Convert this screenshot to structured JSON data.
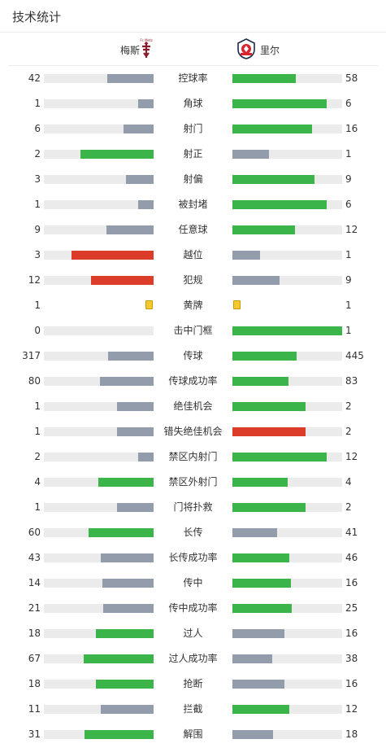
{
  "header": {
    "title": "技术统计"
  },
  "teams": {
    "home": {
      "name": "梅斯",
      "logo_text": "Fc Metz",
      "logo": "metz-crest-icon"
    },
    "away": {
      "name": "里尔",
      "logo": "lille-crest-icon"
    }
  },
  "colors": {
    "green": "#3bb54a",
    "gray": "#939cab",
    "red": "#dc3d2a",
    "track": "#ebebeb",
    "yellow_card": "#f4c92c"
  },
  "stats": [
    {
      "label": "控球率",
      "home": "42",
      "away": "58",
      "home_fill": 0.42,
      "away_fill": 0.58,
      "home_color": "gray",
      "away_color": "green"
    },
    {
      "label": "角球",
      "home": "1",
      "away": "6",
      "home_fill": 0.143,
      "away_fill": 0.857,
      "home_color": "gray",
      "away_color": "green"
    },
    {
      "label": "射门",
      "home": "6",
      "away": "16",
      "home_fill": 0.273,
      "away_fill": 0.727,
      "home_color": "gray",
      "away_color": "green"
    },
    {
      "label": "射正",
      "home": "2",
      "away": "1",
      "home_fill": 0.667,
      "away_fill": 0.333,
      "home_color": "green",
      "away_color": "gray"
    },
    {
      "label": "射偏",
      "home": "3",
      "away": "9",
      "home_fill": 0.25,
      "away_fill": 0.75,
      "home_color": "gray",
      "away_color": "green"
    },
    {
      "label": "被封堵",
      "home": "1",
      "away": "6",
      "home_fill": 0.143,
      "away_fill": 0.857,
      "home_color": "gray",
      "away_color": "green"
    },
    {
      "label": "任意球",
      "home": "9",
      "away": "12",
      "home_fill": 0.429,
      "away_fill": 0.571,
      "home_color": "gray",
      "away_color": "green"
    },
    {
      "label": "越位",
      "home": "3",
      "away": "1",
      "home_fill": 0.75,
      "away_fill": 0.25,
      "home_color": "red",
      "away_color": "gray"
    },
    {
      "label": "犯规",
      "home": "12",
      "away": "9",
      "home_fill": 0.571,
      "away_fill": 0.429,
      "home_color": "red",
      "away_color": "gray"
    },
    {
      "label": "黄牌",
      "home": "1",
      "away": "1",
      "type": "card"
    },
    {
      "label": "击中门框",
      "home": "0",
      "away": "1",
      "home_fill": 0,
      "away_fill": 1,
      "home_color": "gray",
      "away_color": "green"
    },
    {
      "label": "传球",
      "home": "317",
      "away": "445",
      "home_fill": 0.416,
      "away_fill": 0.584,
      "home_color": "gray",
      "away_color": "green"
    },
    {
      "label": "传球成功率",
      "home": "80",
      "away": "83",
      "home_fill": 0.491,
      "away_fill": 0.509,
      "home_color": "gray",
      "away_color": "green"
    },
    {
      "label": "绝佳机会",
      "home": "1",
      "away": "2",
      "home_fill": 0.333,
      "away_fill": 0.667,
      "home_color": "gray",
      "away_color": "green"
    },
    {
      "label": "错失绝佳机会",
      "home": "1",
      "away": "2",
      "home_fill": 0.333,
      "away_fill": 0.667,
      "home_color": "gray",
      "away_color": "red"
    },
    {
      "label": "禁区内射门",
      "home": "2",
      "away": "12",
      "home_fill": 0.143,
      "away_fill": 0.857,
      "home_color": "gray",
      "away_color": "green"
    },
    {
      "label": "禁区外射门",
      "home": "4",
      "away": "4",
      "home_fill": 0.5,
      "away_fill": 0.5,
      "home_color": "green",
      "away_color": "green"
    },
    {
      "label": "门将扑救",
      "home": "1",
      "away": "2",
      "home_fill": 0.333,
      "away_fill": 0.667,
      "home_color": "gray",
      "away_color": "green"
    },
    {
      "label": "长传",
      "home": "60",
      "away": "41",
      "home_fill": 0.594,
      "away_fill": 0.406,
      "home_color": "green",
      "away_color": "gray"
    },
    {
      "label": "长传成功率",
      "home": "43",
      "away": "46",
      "home_fill": 0.483,
      "away_fill": 0.517,
      "home_color": "gray",
      "away_color": "green"
    },
    {
      "label": "传中",
      "home": "14",
      "away": "16",
      "home_fill": 0.467,
      "away_fill": 0.533,
      "home_color": "gray",
      "away_color": "green"
    },
    {
      "label": "传中成功率",
      "home": "21",
      "away": "25",
      "home_fill": 0.457,
      "away_fill": 0.543,
      "home_color": "gray",
      "away_color": "green"
    },
    {
      "label": "过人",
      "home": "18",
      "away": "16",
      "home_fill": 0.529,
      "away_fill": 0.471,
      "home_color": "green",
      "away_color": "gray"
    },
    {
      "label": "过人成功率",
      "home": "67",
      "away": "38",
      "home_fill": 0.638,
      "away_fill": 0.362,
      "home_color": "green",
      "away_color": "gray"
    },
    {
      "label": "抢断",
      "home": "18",
      "away": "16",
      "home_fill": 0.529,
      "away_fill": 0.471,
      "home_color": "green",
      "away_color": "gray"
    },
    {
      "label": "拦截",
      "home": "11",
      "away": "12",
      "home_fill": 0.478,
      "away_fill": 0.522,
      "home_color": "gray",
      "away_color": "green"
    },
    {
      "label": "解围",
      "home": "31",
      "away": "18",
      "home_fill": 0.633,
      "away_fill": 0.367,
      "home_color": "green",
      "away_color": "gray"
    }
  ]
}
